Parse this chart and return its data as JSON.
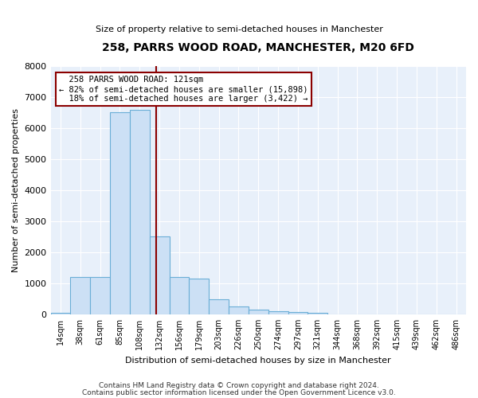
{
  "title": "258, PARRS WOOD ROAD, MANCHESTER, M20 6FD",
  "subtitle": "Size of property relative to semi-detached houses in Manchester",
  "xlabel": "Distribution of semi-detached houses by size in Manchester",
  "ylabel": "Number of semi-detached properties",
  "property_label": "258 PARRS WOOD ROAD: 121sqm",
  "smaller_pct": "82%",
  "smaller_count": "15,898",
  "larger_pct": "18%",
  "larger_count": "3,422",
  "categories": [
    "14sqm",
    "38sqm",
    "61sqm",
    "85sqm",
    "108sqm",
    "132sqm",
    "156sqm",
    "179sqm",
    "203sqm",
    "226sqm",
    "250sqm",
    "274sqm",
    "297sqm",
    "321sqm",
    "344sqm",
    "368sqm",
    "392sqm",
    "415sqm",
    "439sqm",
    "462sqm",
    "486sqm"
  ],
  "values": [
    50,
    1200,
    1200,
    6500,
    6600,
    2500,
    1200,
    1150,
    480,
    250,
    150,
    100,
    80,
    50,
    10,
    5,
    2,
    1,
    1,
    0,
    0
  ],
  "bar_color": "#cce0f5",
  "bar_edge_color": "#6aaed6",
  "red_line_color": "#8b0000",
  "annotation_box_color": "#8b0000",
  "background_color": "#e8f0fa",
  "footer1": "Contains HM Land Registry data © Crown copyright and database right 2024.",
  "footer2": "Contains public sector information licensed under the Open Government Licence v3.0.",
  "ylim": [
    0,
    8000
  ],
  "red_line_bin_index": 4.82,
  "title_fontsize": 10,
  "subtitle_fontsize": 8,
  "ylabel_fontsize": 8,
  "xlabel_fontsize": 8,
  "tick_fontsize": 7,
  "annot_fontsize": 7.5,
  "footer_fontsize": 6.5
}
